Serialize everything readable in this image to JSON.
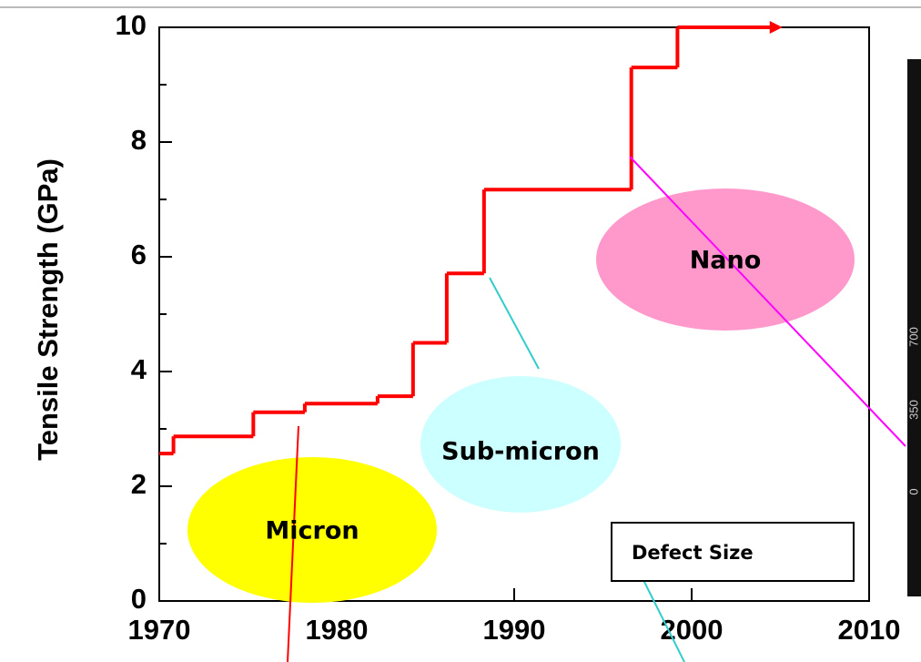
{
  "chart_data": {
    "type": "step",
    "y_label": "Tensile Strength (GPa)",
    "x": [
      1970,
      1970.8,
      1975.3,
      1978.2,
      1982.3,
      1984.3,
      1986.2,
      1988.3,
      1996.6,
      1999.2,
      2004.5
    ],
    "series": [
      {
        "color": "#ff0000",
        "values": [
          2.57,
          2.87,
          3.29,
          3.44,
          3.57,
          4.5,
          5.71,
          7.17,
          9.3,
          10,
          10
        ]
      }
    ],
    "xlim": [
      1970,
      2010
    ],
    "xticks": [
      1970,
      1980,
      1990,
      2000,
      2010
    ],
    "ylim": [
      0,
      10
    ],
    "yticks": [
      0,
      2,
      4,
      6,
      8,
      10
    ],
    "annotations": [
      "Micron",
      "Sub-micron",
      "Nano",
      "Defect Size"
    ],
    "inset_labels": [
      "700",
      "350",
      "0"
    ]
  }
}
